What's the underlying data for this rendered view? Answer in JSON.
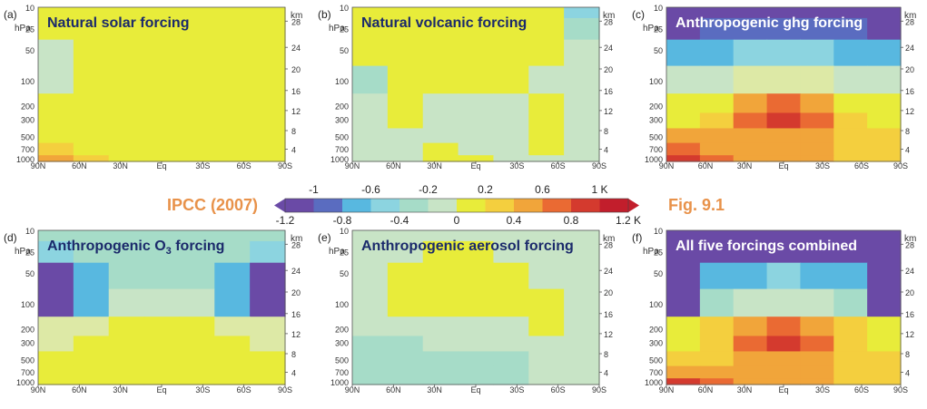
{
  "colors": {
    "-1.2": "#6a4aa6",
    "-1.0": "#5a6cc0",
    "-0.8": "#58b8e0",
    "-0.6": "#8cd4e0",
    "-0.4": "#a6dcc8",
    "-0.2": "#c8e4c6",
    "0": "#dde9a6",
    "0.2": "#e8ec3a",
    "0.4": "#f4cf3e",
    "0.6": "#f1a53a",
    "0.8": "#ea6a33",
    "1.0": "#d43a2e",
    "1.2": "#c21e2c"
  },
  "colorbar": {
    "left_label": "IPCC (2007)",
    "right_label": "Fig. 9.1",
    "top_ticks": [
      "-1",
      "-0.6",
      "-0.2",
      "0.2",
      "0.6",
      "1 K"
    ],
    "bottom_ticks": [
      "-1.2",
      "-0.8",
      "-0.4",
      "0",
      "0.4",
      "0.8",
      "1.2 K"
    ]
  },
  "axes": {
    "hpa_unit": "hPa",
    "km_unit": "km",
    "pressure_ticks": [
      "10",
      "25",
      "50",
      "100",
      "200",
      "300",
      "500",
      "700",
      "1000"
    ],
    "km_ticks": [
      "28",
      "24",
      "20",
      "16",
      "12",
      "8",
      "4"
    ],
    "lat_ticks": [
      "90N",
      "60N",
      "30N",
      "Eq",
      "30S",
      "60S",
      "90S"
    ]
  },
  "chart_data": [
    {
      "type": "heatmap",
      "panel": "(a)",
      "title": "Natural solar forcing",
      "x": [
        "90N",
        "60N",
        "30N",
        "Eq",
        "30S",
        "60S",
        "90S"
      ],
      "y_hpa": [
        10,
        25,
        50,
        100,
        200,
        300,
        500,
        700,
        1000
      ],
      "values": [
        [
          0.2,
          0.2,
          0.2,
          0.2,
          0.2,
          0.2,
          0.2
        ],
        [
          0.2,
          0.2,
          0.2,
          0.2,
          0.2,
          0.2,
          0.2
        ],
        [
          -0.2,
          0.2,
          0.2,
          0.2,
          0.2,
          0.2,
          0.2
        ],
        [
          -0.2,
          0.2,
          0.2,
          0.2,
          0.2,
          0.2,
          0.2
        ],
        [
          0.2,
          0.2,
          0.2,
          0.2,
          0.2,
          0.2,
          0.2
        ],
        [
          0.2,
          0.2,
          0.2,
          0.2,
          0.2,
          0.2,
          0.2
        ],
        [
          0.2,
          0.2,
          0.2,
          0.2,
          0.2,
          0.2,
          0.2
        ],
        [
          0.4,
          0.2,
          0.2,
          0.2,
          0.2,
          0.2,
          0.2
        ],
        [
          0.6,
          0.4,
          0.2,
          0.2,
          0.2,
          0.2,
          0.2
        ]
      ]
    },
    {
      "type": "heatmap",
      "panel": "(b)",
      "title": "Natural volcanic forcing",
      "x": [
        "90N",
        "60N",
        "30N",
        "Eq",
        "30S",
        "60S",
        "90S"
      ],
      "y_hpa": [
        10,
        25,
        50,
        100,
        200,
        300,
        500,
        700,
        1000
      ],
      "values": [
        [
          0.2,
          0.2,
          0.2,
          0.2,
          0.2,
          0.2,
          -0.6
        ],
        [
          0.2,
          0.2,
          0.2,
          0.2,
          0.2,
          0.2,
          -0.4
        ],
        [
          0.2,
          0.2,
          0.2,
          0.2,
          0.2,
          0.2,
          -0.2
        ],
        [
          -0.4,
          0.2,
          0.2,
          0.2,
          0.2,
          -0.2,
          -0.2
        ],
        [
          -0.2,
          0.2,
          -0.2,
          -0.2,
          -0.2,
          0.2,
          -0.2
        ],
        [
          -0.2,
          0.2,
          -0.2,
          -0.2,
          -0.2,
          0.2,
          -0.2
        ],
        [
          -0.2,
          -0.2,
          -0.2,
          -0.2,
          -0.2,
          0.2,
          -0.2
        ],
        [
          -0.2,
          -0.2,
          0.2,
          -0.2,
          -0.2,
          0.2,
          -0.2
        ],
        [
          -0.2,
          -0.2,
          0.2,
          0.2,
          -0.2,
          -0.2,
          -0.2
        ]
      ]
    },
    {
      "type": "heatmap",
      "panel": "(c)",
      "title": "Anthropogenic ghg forcing",
      "x": [
        "90N",
        "60N",
        "30N",
        "Eq",
        "30S",
        "60S",
        "90S"
      ],
      "y_hpa": [
        10,
        25,
        50,
        100,
        200,
        300,
        500,
        700,
        1000
      ],
      "values": [
        [
          -1.2,
          -1.2,
          -1.2,
          -1.2,
          -1.2,
          -1.2,
          -1.2
        ],
        [
          -1.2,
          -1.0,
          -1.0,
          -1.0,
          -1.0,
          -1.0,
          -1.2
        ],
        [
          -0.8,
          -0.8,
          -0.6,
          -0.6,
          -0.6,
          -0.8,
          -0.8
        ],
        [
          -0.2,
          -0.2,
          0,
          0,
          0,
          -0.2,
          -0.2
        ],
        [
          0.2,
          0.2,
          0.6,
          0.8,
          0.6,
          0.2,
          0.2
        ],
        [
          0.2,
          0.4,
          0.8,
          1.0,
          0.8,
          0.4,
          0.2
        ],
        [
          0.6,
          0.6,
          0.6,
          0.6,
          0.6,
          0.4,
          0.4
        ],
        [
          0.8,
          0.6,
          0.6,
          0.6,
          0.6,
          0.4,
          0.4
        ],
        [
          1.0,
          0.8,
          0.6,
          0.6,
          0.6,
          0.4,
          0.4
        ]
      ]
    },
    {
      "type": "heatmap",
      "panel": "(d)",
      "title": "Anthropogenic O3 forcing",
      "x": [
        "90N",
        "60N",
        "30N",
        "Eq",
        "30S",
        "60S",
        "90S"
      ],
      "y_hpa": [
        10,
        25,
        50,
        100,
        200,
        300,
        500,
        700,
        1000
      ],
      "values": [
        [
          -0.4,
          -0.4,
          -0.4,
          -0.4,
          -0.4,
          -0.4,
          -0.4
        ],
        [
          -0.6,
          -0.4,
          -0.4,
          -0.4,
          -0.4,
          -0.4,
          -0.6
        ],
        [
          -1.2,
          -0.8,
          -0.4,
          -0.4,
          -0.4,
          -0.8,
          -1.2
        ],
        [
          -1.2,
          -0.8,
          -0.2,
          -0.2,
          -0.2,
          -0.8,
          -1.2
        ],
        [
          0,
          0,
          0.2,
          0.2,
          0.2,
          0,
          0
        ],
        [
          0,
          0.2,
          0.2,
          0.2,
          0.2,
          0.2,
          0
        ],
        [
          0.2,
          0.2,
          0.2,
          0.2,
          0.2,
          0.2,
          0.2
        ],
        [
          0.2,
          0.2,
          0.2,
          0.2,
          0.2,
          0.2,
          0.2
        ],
        [
          0.2,
          0.2,
          0.2,
          0.2,
          0.2,
          0.2,
          0.2
        ]
      ]
    },
    {
      "type": "heatmap",
      "panel": "(e)",
      "title": "Anthropogenic aerosol forcing",
      "x": [
        "90N",
        "60N",
        "30N",
        "Eq",
        "30S",
        "60S",
        "90S"
      ],
      "y_hpa": [
        10,
        25,
        50,
        100,
        200,
        300,
        500,
        700,
        1000
      ],
      "values": [
        [
          -0.2,
          -0.2,
          -0.2,
          -0.2,
          -0.2,
          -0.2,
          -0.2
        ],
        [
          -0.2,
          -0.2,
          0.2,
          0.2,
          -0.2,
          -0.2,
          -0.2
        ],
        [
          -0.2,
          0.2,
          0.2,
          0.2,
          0.2,
          -0.2,
          -0.2
        ],
        [
          -0.2,
          0.2,
          0.2,
          0.2,
          0.2,
          0.2,
          -0.2
        ],
        [
          -0.2,
          -0.2,
          -0.2,
          -0.2,
          -0.2,
          0.2,
          -0.2
        ],
        [
          -0.4,
          -0.4,
          -0.2,
          -0.2,
          -0.2,
          -0.2,
          -0.2
        ],
        [
          -0.4,
          -0.4,
          -0.4,
          -0.4,
          -0.4,
          -0.2,
          -0.2
        ],
        [
          -0.4,
          -0.4,
          -0.4,
          -0.4,
          -0.4,
          -0.2,
          -0.2
        ],
        [
          -0.4,
          -0.4,
          -0.4,
          -0.4,
          -0.4,
          -0.2,
          -0.2
        ]
      ]
    },
    {
      "type": "heatmap",
      "panel": "(f)",
      "title": "All five forcings combined",
      "x": [
        "90N",
        "60N",
        "30N",
        "Eq",
        "30S",
        "60S",
        "90S"
      ],
      "y_hpa": [
        10,
        25,
        50,
        100,
        200,
        300,
        500,
        700,
        1000
      ],
      "values": [
        [
          -1.2,
          -1.2,
          -1.2,
          -1.2,
          -1.2,
          -1.2,
          -1.2
        ],
        [
          -1.2,
          -1.2,
          -1.2,
          -1.2,
          -1.2,
          -1.2,
          -1.2
        ],
        [
          -1.2,
          -0.8,
          -0.8,
          -0.6,
          -0.8,
          -0.8,
          -1.2
        ],
        [
          -1.2,
          -0.4,
          -0.2,
          -0.2,
          -0.2,
          -0.4,
          -1.2
        ],
        [
          0.2,
          0.4,
          0.6,
          0.8,
          0.6,
          0.4,
          0.2
        ],
        [
          0.2,
          0.4,
          0.8,
          1.0,
          0.8,
          0.4,
          0.2
        ],
        [
          0.4,
          0.4,
          0.6,
          0.6,
          0.6,
          0.4,
          0.4
        ],
        [
          0.6,
          0.6,
          0.6,
          0.6,
          0.6,
          0.4,
          0.4
        ],
        [
          1.0,
          0.8,
          0.6,
          0.6,
          0.6,
          0.4,
          0.4
        ]
      ]
    }
  ]
}
